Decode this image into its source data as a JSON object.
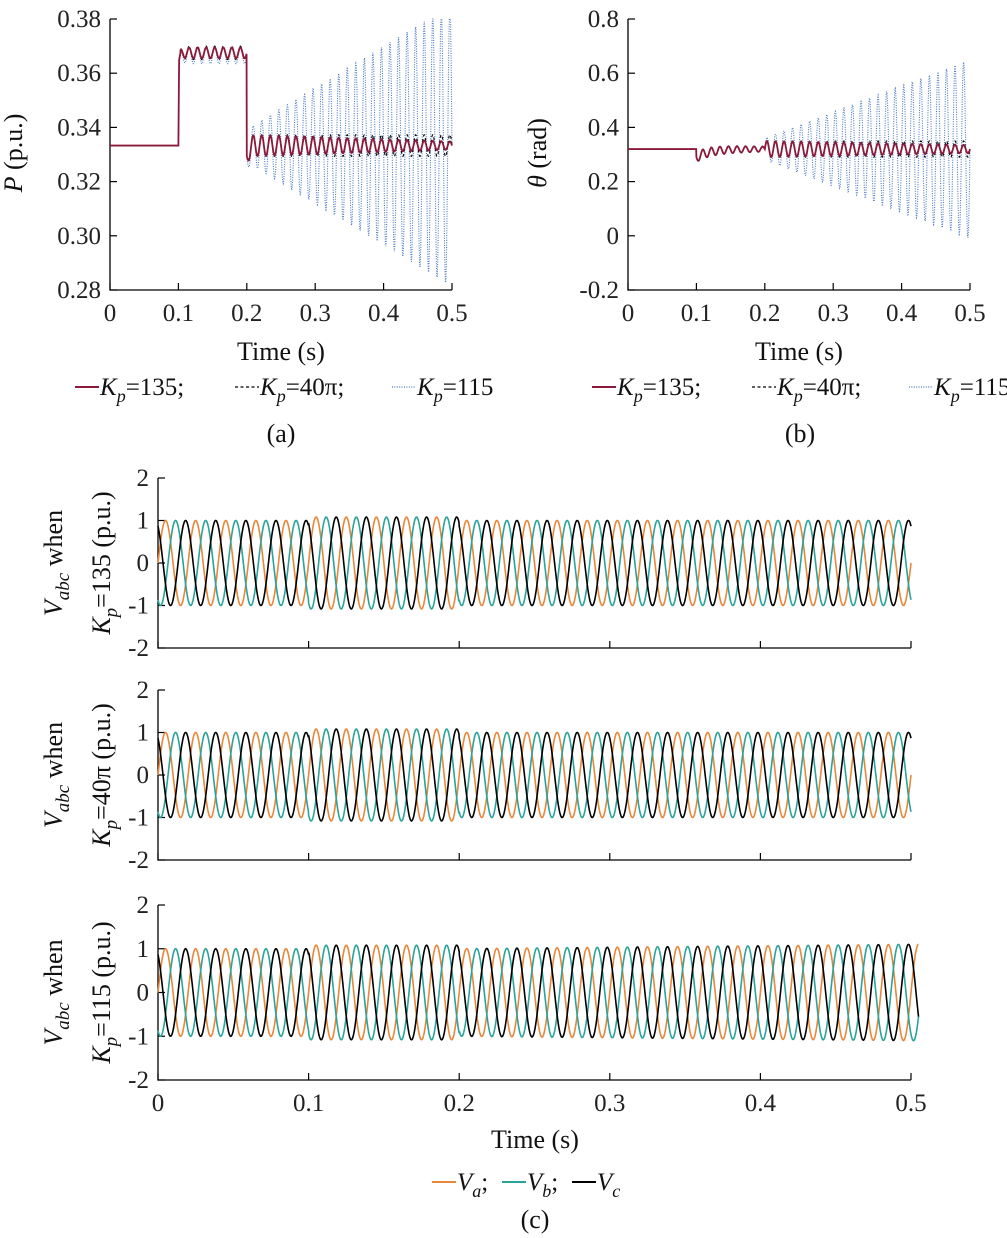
{
  "chart_data": [
    {
      "panel": "(a)",
      "type": "line",
      "ylabel": "P (p.u.)",
      "ylabel_italic": "P",
      "ylabel_rest": " (p.u.)",
      "xlabel": "Time (s)",
      "xlim": [
        0,
        0.5
      ],
      "ylim": [
        0.28,
        0.38
      ],
      "xticks": [
        "0",
        "0.1",
        "0.2",
        "0.3",
        "0.4",
        "0.5"
      ],
      "yticks": [
        "0.28",
        "0.30",
        "0.32",
        "0.34",
        "0.36",
        "0.38"
      ],
      "series": [
        {
          "name": "Kp=135",
          "color": "#8b1a3a",
          "style": "solid",
          "baseline": 0.3333,
          "step_value": 0.3675,
          "step_window": [
            0.1,
            0.2
          ],
          "step_ripple": 0.002,
          "post_initial_amp": 0.004,
          "post_final_amp": 0.0015
        },
        {
          "name": "Kp=40π",
          "color": "#000000",
          "style": "dashed",
          "baseline": 0.3333,
          "step_value": 0.3675,
          "step_window": [
            0.1,
            0.2
          ],
          "step_ripple": 0.0025,
          "post_initial_amp": 0.004,
          "post_final_amp": 0.004
        },
        {
          "name": "Kp=115",
          "color": "#4a78c2",
          "style": "dotted",
          "baseline": 0.3333,
          "step_value": 0.3665,
          "step_window": [
            0.1,
            0.2
          ],
          "step_ripple": 0.003,
          "post_initial_amp": 0.006,
          "post_final_amp": 0.052
        }
      ],
      "oscillation_frequency_hz": 80
    },
    {
      "panel": "(b)",
      "type": "line",
      "ylabel": "θ (rad)",
      "ylabel_italic": "θ",
      "ylabel_rest": " (rad)",
      "xlabel": "Time (s)",
      "xlim": [
        0,
        0.5
      ],
      "ylim": [
        -0.2,
        0.8
      ],
      "xticks": [
        "0",
        "0.1",
        "0.2",
        "0.3",
        "0.4",
        "0.5"
      ],
      "yticks": [
        "-0.2",
        "0",
        "0.2",
        "0.4",
        "0.6",
        "0.8"
      ],
      "series": [
        {
          "name": "Kp=135",
          "color": "#8b1a3a",
          "style": "solid",
          "baseline": 0.32,
          "step_window": [
            0.1,
            0.2
          ],
          "step_offset": -0.03,
          "step_ripple": 0.018,
          "post_initial_amp": 0.03,
          "post_final_amp": 0.015
        },
        {
          "name": "Kp=40π",
          "color": "#000000",
          "style": "dashed",
          "baseline": 0.32,
          "step_window": [
            0.1,
            0.2
          ],
          "step_offset": -0.03,
          "step_ripple": 0.02,
          "post_initial_amp": 0.03,
          "post_final_amp": 0.03
        },
        {
          "name": "Kp=115",
          "color": "#4a78c2",
          "style": "dotted",
          "baseline": 0.32,
          "step_window": [
            0.1,
            0.2
          ],
          "step_offset": -0.03,
          "step_ripple": 0.02,
          "post_initial_amp": 0.04,
          "post_final_amp": 0.33
        }
      ],
      "oscillation_frequency_hz": 80
    },
    {
      "panel": "(c)",
      "type": "line",
      "subplots": [
        {
          "ylabel": "Vabc when Kp=135 (p.u.)",
          "ylabel_line1": "V",
          "ylabel_sub1": "abc",
          "ylabel_line1_rest": " when",
          "ylabel_line2": "K",
          "ylabel_sub2": "p",
          "ylabel_line2_rest": "=135 (p.u.)",
          "ylim": [
            -2,
            2
          ],
          "yticks": [
            "-2",
            "-1",
            "0",
            "1",
            "2"
          ],
          "amp_normal": 1.0,
          "amp_step": 1.08,
          "amp_final": 1.0
        },
        {
          "ylabel": "Vabc when Kp=40π (p.u.)",
          "ylabel_line1": "V",
          "ylabel_sub1": "abc",
          "ylabel_line1_rest": " when",
          "ylabel_line2": "K",
          "ylabel_sub2": "p",
          "ylabel_line2_rest": "=40π (p.u.)",
          "ylim": [
            -2,
            2
          ],
          "yticks": [
            "-2",
            "-1",
            "0",
            "1",
            "2"
          ],
          "amp_normal": 1.0,
          "amp_step": 1.08,
          "amp_final": 1.0
        },
        {
          "ylabel": "Vabc when Kp=115 (p.u.)",
          "ylabel_line1": "V",
          "ylabel_sub1": "abc",
          "ylabel_line1_rest": " when",
          "ylabel_line2": "K",
          "ylabel_sub2": "p",
          "ylabel_line2_rest": "=115 (p.u.)",
          "ylim": [
            -2,
            2
          ],
          "yticks": [
            "-2",
            "-1",
            "0",
            "1",
            "2"
          ],
          "amp_normal": 1.0,
          "amp_step": 1.08,
          "amp_final": 1.1
        }
      ],
      "xlabel": "Time (s)",
      "xlim": [
        0,
        0.5
      ],
      "xticks": [
        "0",
        "0.1",
        "0.2",
        "0.3",
        "0.4",
        "0.5"
      ],
      "frequency_hz": 50,
      "series": [
        {
          "name": "Va",
          "color": "#e8873a",
          "phase_deg": 0
        },
        {
          "name": "Vb",
          "color": "#2aa39a",
          "phase_deg": -120
        },
        {
          "name": "Vc",
          "color": "#000000",
          "phase_deg": 120
        }
      ]
    }
  ],
  "legend_ab": {
    "items": [
      {
        "sym": "K",
        "sub": "p",
        "rest": "=135;"
      },
      {
        "sym": "K",
        "sub": "p",
        "rest": "=40π;"
      },
      {
        "sym": "K",
        "sub": "p",
        "rest": "=115"
      }
    ]
  },
  "legend_c": {
    "items": [
      {
        "sym": "V",
        "sub": "a",
        "rest": ";"
      },
      {
        "sym": "V",
        "sub": "b",
        "rest": ";"
      },
      {
        "sym": "V",
        "sub": "c",
        "rest": ""
      }
    ]
  },
  "captions": {
    "a": "(a)",
    "b": "(b)",
    "c": "(c)"
  }
}
